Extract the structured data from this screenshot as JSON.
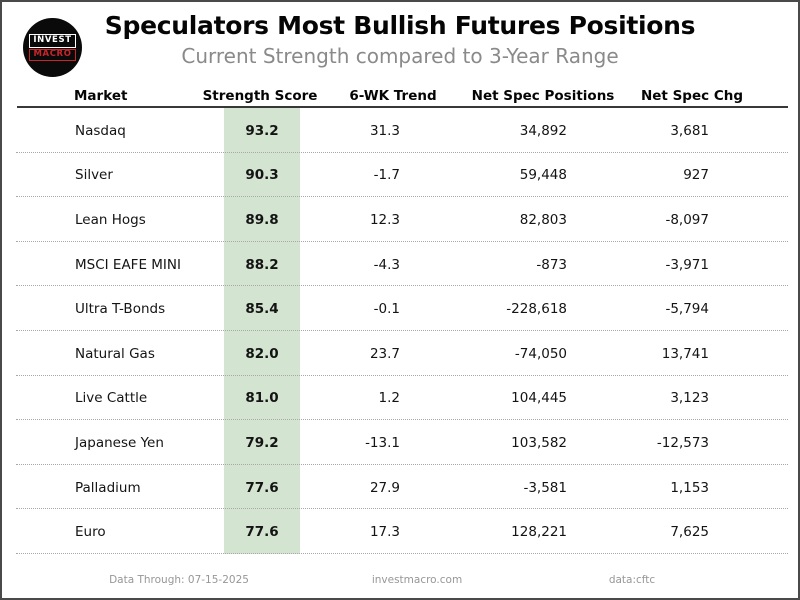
{
  "title": "Speculators Most Bullish Futures Positions",
  "subtitle": "Current Strength compared to 3-Year Range",
  "logo": {
    "line1": "INVEST",
    "line2": "MACRO"
  },
  "table": {
    "columns": [
      "Market",
      "Strength Score",
      "6-WK Trend",
      "Net Spec Positions",
      "Net Spec Chg"
    ],
    "rows": [
      {
        "market": "Nasdaq",
        "score": "93.2",
        "trend": "31.3",
        "positions": "34,892",
        "chg": "3,681"
      },
      {
        "market": "Silver",
        "score": "90.3",
        "trend": "-1.7",
        "positions": "59,448",
        "chg": "927"
      },
      {
        "market": "Lean Hogs",
        "score": "89.8",
        "trend": "12.3",
        "positions": "82,803",
        "chg": "-8,097"
      },
      {
        "market": "MSCI EAFE MINI",
        "score": "88.2",
        "trend": "-4.3",
        "positions": "-873",
        "chg": "-3,971"
      },
      {
        "market": "Ultra T-Bonds",
        "score": "85.4",
        "trend": "-0.1",
        "positions": "-228,618",
        "chg": "-5,794"
      },
      {
        "market": "Natural Gas",
        "score": "82.0",
        "trend": "23.7",
        "positions": "-74,050",
        "chg": "13,741"
      },
      {
        "market": "Live Cattle",
        "score": "81.0",
        "trend": "1.2",
        "positions": "104,445",
        "chg": "3,123"
      },
      {
        "market": "Japanese Yen",
        "score": "79.2",
        "trend": "-13.1",
        "positions": "103,582",
        "chg": "-12,573"
      },
      {
        "market": "Palladium",
        "score": "77.6",
        "trend": "27.9",
        "positions": "-3,581",
        "chg": "1,153"
      },
      {
        "market": "Euro",
        "score": "77.6",
        "trend": "17.3",
        "positions": "128,221",
        "chg": "7,625"
      }
    ]
  },
  "footer": {
    "data_through": "Data Through: 07-15-2025",
    "website": "investmacro.com",
    "source": "data:cftc"
  },
  "colors": {
    "score_band": "#d3e4d0",
    "logo_red": "#c9252b",
    "header_line": "#383838"
  },
  "chart_data": {
    "type": "table",
    "title": "Speculators Most Bullish Futures Positions",
    "subtitle": "Current Strength compared to 3-Year Range",
    "columns": [
      "Market",
      "Strength Score",
      "6-WK Trend",
      "Net Spec Positions",
      "Net Spec Chg"
    ],
    "rows": [
      [
        "Nasdaq",
        93.2,
        31.3,
        34892,
        3681
      ],
      [
        "Silver",
        90.3,
        -1.7,
        59448,
        927
      ],
      [
        "Lean Hogs",
        89.8,
        12.3,
        82803,
        -8097
      ],
      [
        "MSCI EAFE MINI",
        88.2,
        -4.3,
        -873,
        -3971
      ],
      [
        "Ultra T-Bonds",
        85.4,
        -0.1,
        -228618,
        -5794
      ],
      [
        "Natural Gas",
        82.0,
        23.7,
        -74050,
        13741
      ],
      [
        "Live Cattle",
        81.0,
        1.2,
        104445,
        3123
      ],
      [
        "Japanese Yen",
        79.2,
        -13.1,
        103582,
        -12573
      ],
      [
        "Palladium",
        77.6,
        27.9,
        -3581,
        1153
      ],
      [
        "Euro",
        77.6,
        17.3,
        128221,
        7625
      ]
    ],
    "notes": "Strength Score column highlighted with light green band; rows separated by dotted lines",
    "footer": [
      "Data Through: 07-15-2025",
      "investmacro.com",
      "data:cftc"
    ]
  }
}
